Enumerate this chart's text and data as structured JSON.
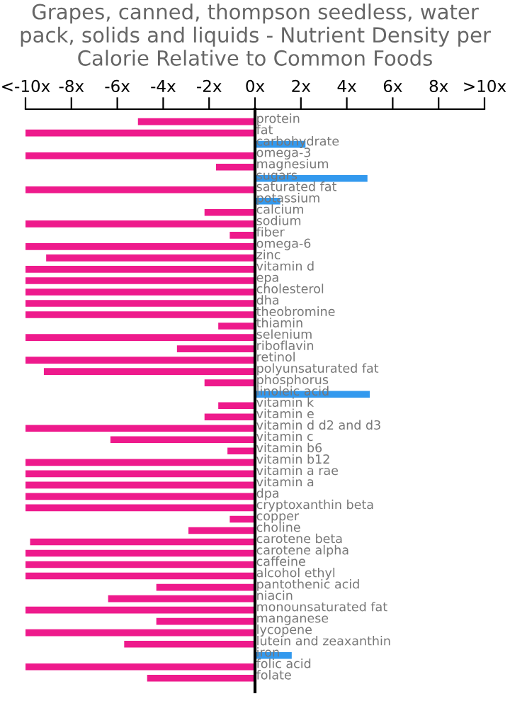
{
  "chart_data": {
    "type": "bar",
    "orientation": "horizontal",
    "title": "Grapes, canned, thompson seedless, water pack, solids and liquids - Nutrient Density per Calorie Relative to Common Foods",
    "categories": [
      "protein",
      "fat",
      "carbohydrate",
      "omega-3",
      "magnesium",
      "sugars",
      "saturated fat",
      "potassium",
      "calcium",
      "sodium",
      "fiber",
      "omega-6",
      "zinc",
      "vitamin d",
      "epa",
      "cholesterol",
      "dha",
      "theobromine",
      "thiamin",
      "selenium",
      "riboflavin",
      "retinol",
      "polyunsaturated fat",
      "phosphorus",
      "linoleic acid",
      "vitamin k",
      "vitamin e",
      "vitamin d d2 and d3",
      "vitamin c",
      "vitamin b6",
      "vitamin b12",
      "vitamin a rae",
      "vitamin a",
      "dpa",
      "cryptoxanthin beta",
      "copper",
      "choline",
      "carotene beta",
      "carotene alpha",
      "caffeine",
      "alcohol ethyl",
      "pantothenic acid",
      "niacin",
      "monounsaturated fat",
      "manganese",
      "lycopene",
      "lutein and zeaxanthin",
      "iron",
      "folic acid",
      "folate"
    ],
    "values": [
      -5.1,
      -10,
      2.2,
      -10,
      -1.7,
      4.9,
      -10,
      1.1,
      -2.2,
      -10,
      -1.1,
      -10,
      -9.1,
      -10,
      -10,
      -10,
      -10,
      -10,
      -1.6,
      -10,
      -3.4,
      -10,
      -9.2,
      -2.2,
      5.0,
      -1.6,
      -2.2,
      -10,
      -6.3,
      -1.2,
      -10,
      -10,
      -10,
      -10,
      -10,
      -1.1,
      -2.9,
      -9.8,
      -10,
      -10,
      -10,
      -4.3,
      -6.4,
      -10,
      -4.3,
      -10,
      -5.7,
      1.6,
      -10,
      -4.7
    ],
    "colors": [
      "#ee1a8c",
      "#ee1a8c",
      "#3399ee",
      "#ee1a8c",
      "#ee1a8c",
      "#3399ee",
      "#ee1a8c",
      "#3399ee",
      "#ee1a8c",
      "#ee1a8c",
      "#ee1a8c",
      "#ee1a8c",
      "#ee1a8c",
      "#ee1a8c",
      "#ee1a8c",
      "#ee1a8c",
      "#ee1a8c",
      "#ee1a8c",
      "#ee1a8c",
      "#ee1a8c",
      "#ee1a8c",
      "#ee1a8c",
      "#ee1a8c",
      "#ee1a8c",
      "#3399ee",
      "#ee1a8c",
      "#ee1a8c",
      "#ee1a8c",
      "#ee1a8c",
      "#ee1a8c",
      "#ee1a8c",
      "#ee1a8c",
      "#ee1a8c",
      "#ee1a8c",
      "#ee1a8c",
      "#ee1a8c",
      "#ee1a8c",
      "#ee1a8c",
      "#ee1a8c",
      "#ee1a8c",
      "#ee1a8c",
      "#ee1a8c",
      "#ee1a8c",
      "#ee1a8c",
      "#ee1a8c",
      "#ee1a8c",
      "#ee1a8c",
      "#3399ee",
      "#ee1a8c",
      "#ee1a8c"
    ],
    "xlim": [
      -10,
      10
    ],
    "xticks": [
      {
        "value": -10,
        "label": "<-10x"
      },
      {
        "value": -8,
        "label": "-8x"
      },
      {
        "value": -6,
        "label": "-6x"
      },
      {
        "value": -4,
        "label": "-4x"
      },
      {
        "value": -2,
        "label": "-2x"
      },
      {
        "value": 0,
        "label": "0x"
      },
      {
        "value": 2,
        "label": "2x"
      },
      {
        "value": 4,
        "label": "4x"
      },
      {
        "value": 6,
        "label": "6x"
      },
      {
        "value": 8,
        "label": "8x"
      },
      {
        "value": 10,
        "label": ">10x"
      }
    ],
    "grid": false,
    "legend": false
  }
}
